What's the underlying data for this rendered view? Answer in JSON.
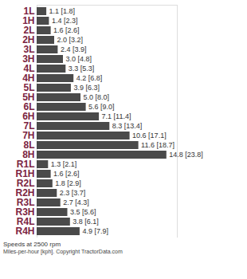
{
  "chart_data": {
    "type": "bar",
    "orientation": "horizontal",
    "subtitle": "Speeds at 2500 rpm",
    "caption": "Miles-per-hour [kph]. Copyright TractorData.com",
    "categories": [
      "1L",
      "1H",
      "2L",
      "2H",
      "3L",
      "3H",
      "4L",
      "4H",
      "5L",
      "5H",
      "6L",
      "6H",
      "7L",
      "7H",
      "8L",
      "8H",
      "R1L",
      "R1H",
      "R2L",
      "R2H",
      "R3L",
      "R3H",
      "R4L",
      "R4H"
    ],
    "values": [
      1.1,
      1.4,
      1.6,
      2.0,
      2.4,
      3.0,
      3.3,
      4.2,
      3.9,
      5.0,
      5.6,
      7.1,
      8.3,
      10.6,
      11.6,
      14.8,
      1.3,
      1.6,
      1.8,
      2.3,
      2.7,
      3.5,
      3.8,
      4.9
    ],
    "value_labels": [
      "1.1 [1.8]",
      "1.4 [2.3]",
      "1.6 [2.6]",
      "2.0 [3.2]",
      "2.4 [3.9]",
      "3.0 [4.8]",
      "3.3 [5.3]",
      "4.2 [6.8]",
      "3.9 [6.3]",
      "5.0 [8.0]",
      "5.6 [9.0]",
      "7.1 [11.4]",
      "8.3 [13.4]",
      "10.6 [17.1]",
      "11.6 [18.7]",
      "14.8 [23.8]",
      "1.3 [2.1]",
      "1.6 [2.6]",
      "1.8 [2.9]",
      "2.3 [3.7]",
      "2.7 [4.3]",
      "3.5 [5.6]",
      "3.8 [6.1]",
      "4.9 [7.9]"
    ],
    "color": "#4a4a4a",
    "xlim": [
      0,
      16
    ],
    "xticks": [],
    "data_labels": true,
    "tick_labels": "y",
    "grid": false
  }
}
